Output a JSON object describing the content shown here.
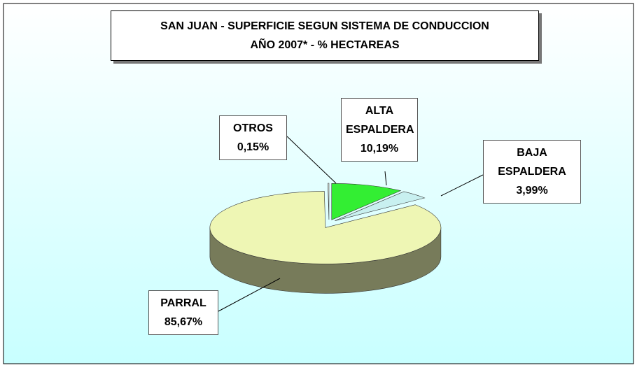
{
  "chart_data": {
    "type": "pie",
    "title": "SAN JUAN - SUPERFICIE SEGUN SISTEMA DE CONDUCCION",
    "subtitle": "AÑO 2007* - % HECTAREAS",
    "categories": [
      "ALTA ESPALDERA",
      "BAJA ESPALDERA",
      "PARRAL",
      "OTROS"
    ],
    "values": [
      10.19,
      3.99,
      85.67,
      0.15
    ],
    "value_labels": [
      "10,19%",
      "3,99%",
      "85,67%",
      "0,15%"
    ],
    "colors": [
      "#33ee33",
      "#c8f0f0",
      "#eef6b4",
      "#f4fbf4"
    ]
  }
}
